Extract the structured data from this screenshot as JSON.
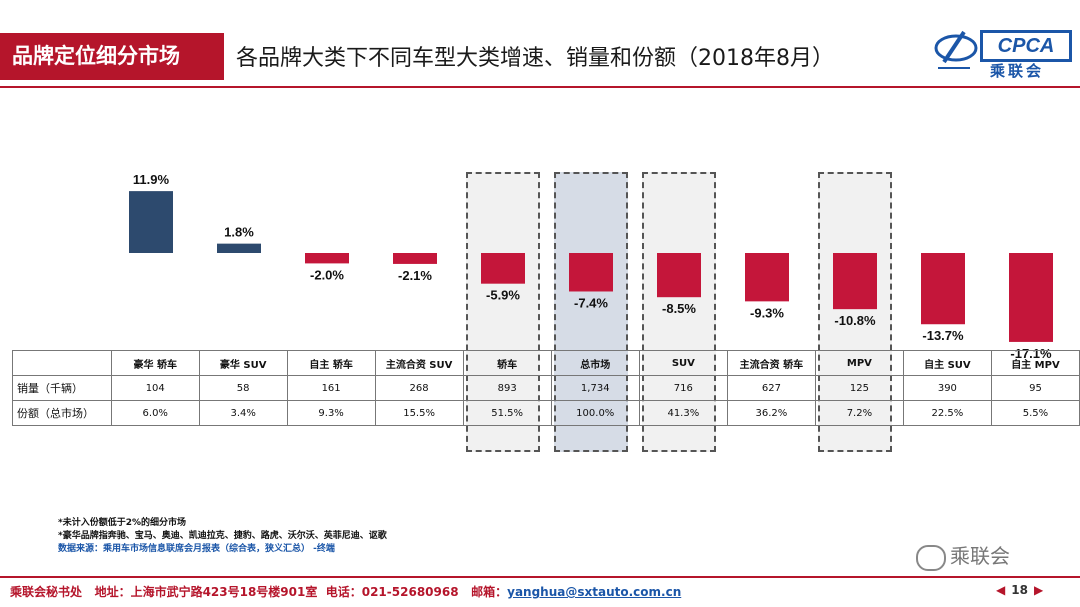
{
  "header": {
    "section": "品牌定位细分市场",
    "title": "各品牌大类下不同车型大类增速、销量和份额（2018年8月）",
    "logo_text": "CPCA",
    "logo_sub": "乘联会"
  },
  "chart_data": {
    "type": "bar",
    "categories": [
      "豪华 轿车",
      "豪华 SUV",
      "自主 轿车",
      "主流合资 SUV",
      "轿车",
      "总市场",
      "SUV",
      "主流合资 轿车",
      "MPV",
      "自主 SUV",
      "自主 MPV"
    ],
    "values": [
      11.9,
      1.8,
      -2.0,
      -2.1,
      -5.9,
      -7.4,
      -8.5,
      -9.3,
      -10.8,
      -13.7,
      -17.1
    ],
    "labels": [
      "11.9%",
      "1.8%",
      "-2.0%",
      "-2.1%",
      "-5.9%",
      "-7.4%",
      "-8.5%",
      "-9.3%",
      "-10.8%",
      "-13.7%",
      "-17.1%"
    ],
    "colors": {
      "positive": "#2d4a6e",
      "negative": "#c4163a"
    },
    "highlighted": [
      "轿车",
      "总市场",
      "SUV",
      "MPV"
    ],
    "highlight_fill": {
      "default": "#f1f1f1",
      "总市场": "#d6dce6"
    },
    "ylim": [
      -18,
      13
    ],
    "grid": false
  },
  "table": {
    "rows": [
      {
        "label": "销量（千辆）",
        "values": [
          "104",
          "58",
          "161",
          "268",
          "893",
          "1,734",
          "716",
          "627",
          "125",
          "390",
          "95"
        ]
      },
      {
        "label": "份额（总市场）",
        "values": [
          "6.0%",
          "3.4%",
          "9.3%",
          "15.5%",
          "51.5%",
          "100.0%",
          "41.3%",
          "36.2%",
          "7.2%",
          "22.5%",
          "5.5%"
        ]
      }
    ]
  },
  "notes": {
    "line1": "*未计入份额低于2%的细分市场",
    "line2": "*豪华品牌指奔驰、宝马、奥迪、凯迪拉克、捷豹、路虎、沃尔沃、英菲尼迪、讴歌",
    "line3": "数据来源：乘用车市场信息联席会月报表（综合表，狭义汇总） -终端"
  },
  "watermark": "乘联会",
  "footer": {
    "org": "乘联会秘书处",
    "address": "地址：上海市武宁路423号18号楼901室",
    "phone": "电话：021-52680968",
    "email_label": "邮箱：",
    "email": "yanghua@sxtauto.com.cn",
    "page": "18"
  }
}
